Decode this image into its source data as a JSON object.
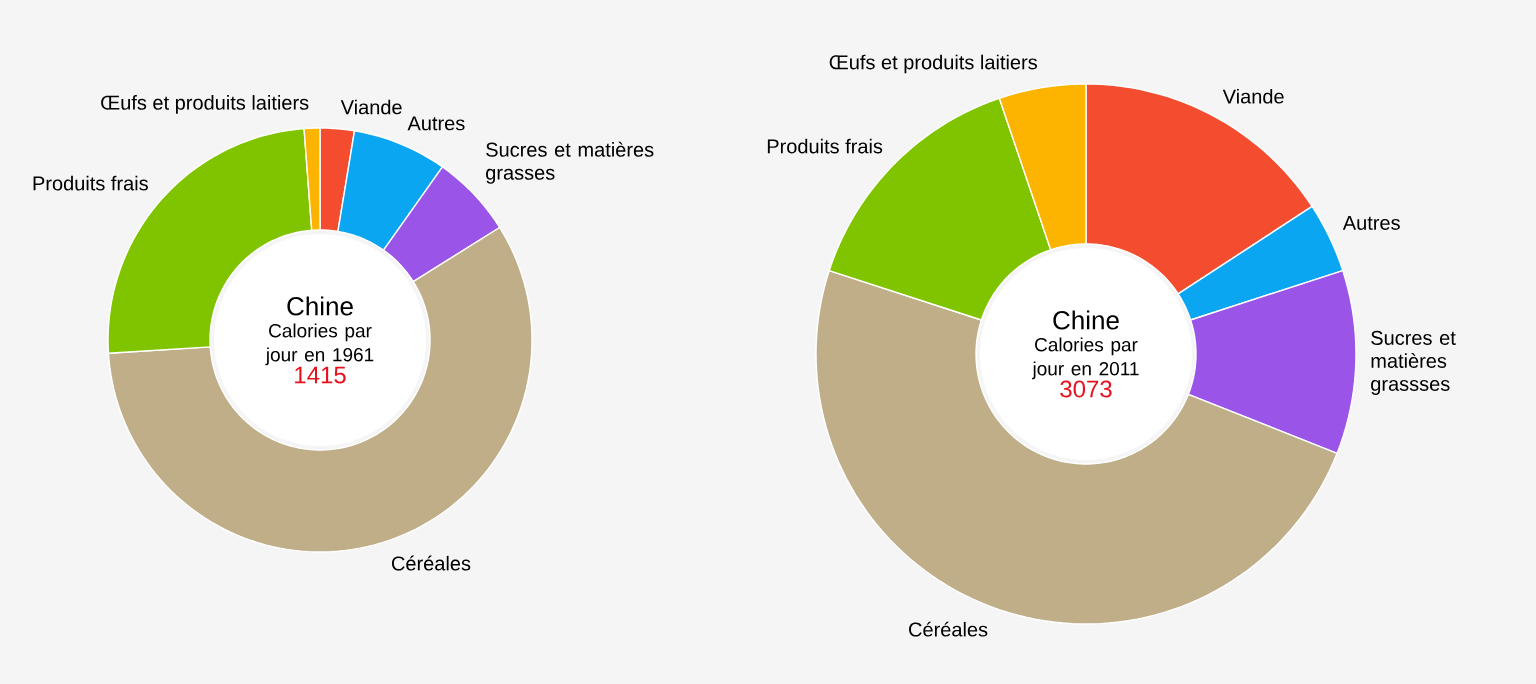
{
  "chart_data": [
    {
      "type": "donut",
      "title": "Chine",
      "subtitle": "Calories par jour en 1961",
      "annotations": [
        "1415"
      ],
      "categories": [
        "Viande",
        "Autres",
        "Sucres et matières grasses",
        "Céréales",
        "Produits frais",
        "Œufs et produits laitiers"
      ],
      "values": [
        2.6,
        7.2,
        6.3,
        57.9,
        24.8,
        1.2
      ],
      "colors": [
        "#f44c2f",
        "#0ba6f2",
        "#9a55e8",
        "#bfae88",
        "#80c400",
        "#fdb400"
      ]
    },
    {
      "type": "donut",
      "title": "Chine",
      "subtitle": "Calories par jour en 2011",
      "annotations": [
        "3073"
      ],
      "categories": [
        "Viande",
        "Autres",
        "Sucres et matières grassses",
        "Céréales",
        "Produits frais",
        "Œufs et produits laitiers"
      ],
      "values": [
        15.8,
        4.2,
        11.0,
        49.0,
        14.8,
        5.2
      ],
      "colors": [
        "#f44c2f",
        "#0ba6f2",
        "#9a55e8",
        "#bfae88",
        "#80c400",
        "#fdb400"
      ]
    }
  ]
}
